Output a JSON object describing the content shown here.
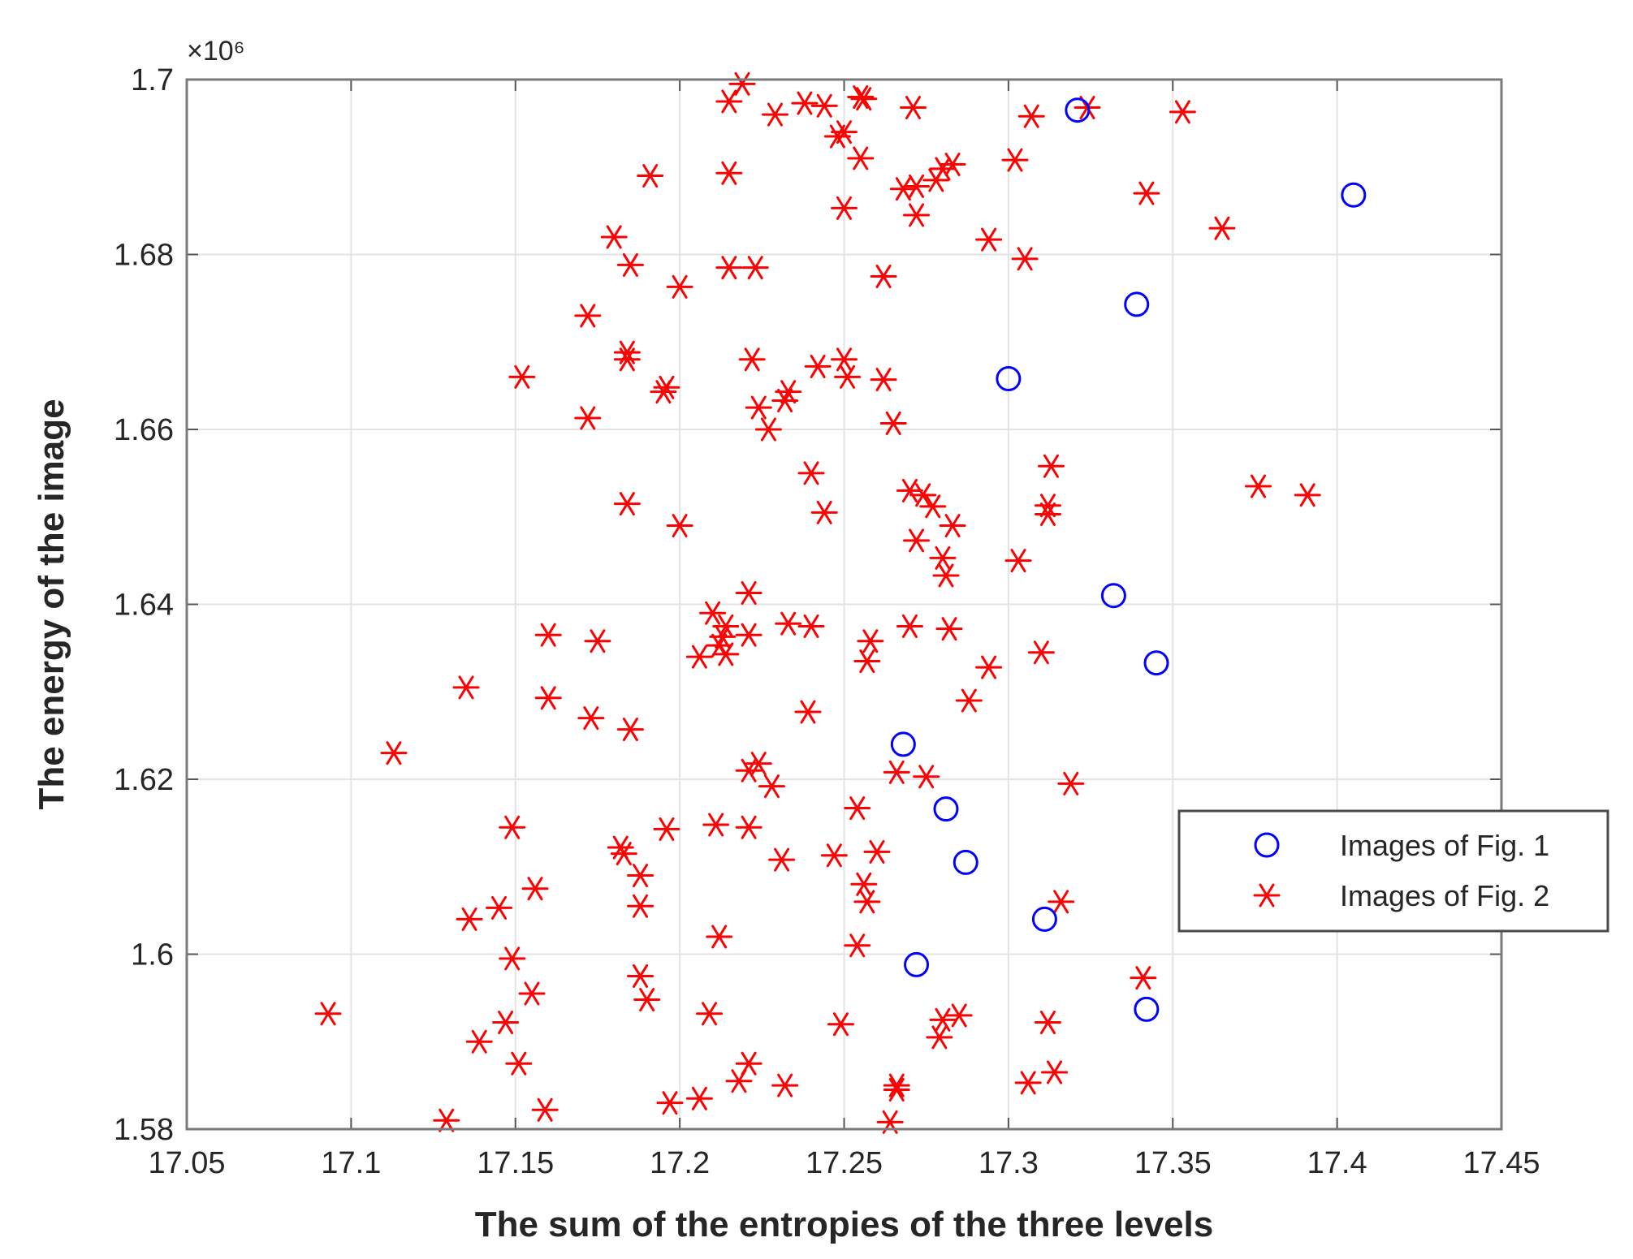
{
  "chart_data": {
    "type": "scatter",
    "title": "",
    "xlabel": "The sum of the entropies of the three levels",
    "ylabel": "The energy of the image",
    "y_exponent_label": "×10⁶",
    "y_scale_factor": 1000000,
    "xlim": [
      17.05,
      17.45
    ],
    "ylim": [
      1.58,
      1.7
    ],
    "x_ticks": [
      "17.05",
      "17.1",
      "17.15",
      "17.2",
      "17.25",
      "17.3",
      "17.35",
      "17.4",
      "17.45"
    ],
    "y_ticks": [
      "1.58",
      "1.6",
      "1.62",
      "1.64",
      "1.66",
      "1.68",
      "1.7"
    ],
    "grid": true,
    "legend_position": "right",
    "series": [
      {
        "name": "Images of Fig. 1",
        "marker": "circle",
        "color": "#0000ff",
        "points": [
          [
            17.321,
            1.6965
          ],
          [
            17.405,
            1.6868
          ],
          [
            17.339,
            1.6743
          ],
          [
            17.3,
            1.6658
          ],
          [
            17.332,
            1.641
          ],
          [
            17.345,
            1.6333
          ],
          [
            17.268,
            1.624
          ],
          [
            17.281,
            1.6166
          ],
          [
            17.287,
            1.6105
          ],
          [
            17.311,
            1.604
          ],
          [
            17.272,
            1.5988
          ],
          [
            17.342,
            1.5937
          ]
        ]
      },
      {
        "name": "Images of Fig. 2",
        "marker": "star",
        "color": "#ff0000",
        "points": [
          [
            17.219,
            1.6995
          ],
          [
            17.215,
            1.6975
          ],
          [
            17.229,
            1.696
          ],
          [
            17.238,
            1.6973
          ],
          [
            17.244,
            1.697
          ],
          [
            17.256,
            1.6978
          ],
          [
            17.255,
            1.698
          ],
          [
            17.271,
            1.6968
          ],
          [
            17.307,
            1.6958
          ],
          [
            17.324,
            1.6968
          ],
          [
            17.353,
            1.6963
          ],
          [
            17.248,
            1.6935
          ],
          [
            17.25,
            1.694
          ],
          [
            17.255,
            1.691
          ],
          [
            17.191,
            1.689
          ],
          [
            17.215,
            1.6893
          ],
          [
            17.268,
            1.6875
          ],
          [
            17.272,
            1.6878
          ],
          [
            17.278,
            1.6885
          ],
          [
            17.28,
            1.6898
          ],
          [
            17.283,
            1.6903
          ],
          [
            17.302,
            1.6908
          ],
          [
            17.342,
            1.687
          ],
          [
            17.25,
            1.6853
          ],
          [
            17.272,
            1.6845
          ],
          [
            17.365,
            1.683
          ],
          [
            17.18,
            1.682
          ],
          [
            17.294,
            1.6817
          ],
          [
            17.185,
            1.6788
          ],
          [
            17.215,
            1.6785
          ],
          [
            17.223,
            1.6785
          ],
          [
            17.305,
            1.6795
          ],
          [
            17.2,
            1.6763
          ],
          [
            17.262,
            1.6775
          ],
          [
            17.172,
            1.673
          ],
          [
            17.184,
            1.6688
          ],
          [
            17.184,
            1.668
          ],
          [
            17.222,
            1.668
          ],
          [
            17.242,
            1.6672
          ],
          [
            17.25,
            1.668
          ],
          [
            17.251,
            1.666
          ],
          [
            17.262,
            1.6657
          ],
          [
            17.152,
            1.666
          ],
          [
            17.196,
            1.6648
          ],
          [
            17.195,
            1.6643
          ],
          [
            17.232,
            1.6633
          ],
          [
            17.233,
            1.6643
          ],
          [
            17.224,
            1.6625
          ],
          [
            17.227,
            1.66
          ],
          [
            17.172,
            1.6613
          ],
          [
            17.265,
            1.6607
          ],
          [
            17.313,
            1.6558
          ],
          [
            17.24,
            1.655
          ],
          [
            17.376,
            1.6535
          ],
          [
            17.391,
            1.6525
          ],
          [
            17.27,
            1.653
          ],
          [
            17.274,
            1.6525
          ],
          [
            17.277,
            1.6512
          ],
          [
            17.312,
            1.6513
          ],
          [
            17.312,
            1.6503
          ],
          [
            17.184,
            1.6515
          ],
          [
            17.244,
            1.6505
          ],
          [
            17.2,
            1.649
          ],
          [
            17.283,
            1.649
          ],
          [
            17.272,
            1.6473
          ],
          [
            17.28,
            1.6453
          ],
          [
            17.281,
            1.6433
          ],
          [
            17.303,
            1.645
          ],
          [
            17.221,
            1.6413
          ],
          [
            17.21,
            1.639
          ],
          [
            17.214,
            1.6375
          ],
          [
            17.213,
            1.6363
          ],
          [
            17.212,
            1.6353
          ],
          [
            17.214,
            1.6343
          ],
          [
            17.206,
            1.634
          ],
          [
            17.221,
            1.6365
          ],
          [
            17.233,
            1.6378
          ],
          [
            17.24,
            1.6375
          ],
          [
            17.258,
            1.6358
          ],
          [
            17.257,
            1.6335
          ],
          [
            17.27,
            1.6375
          ],
          [
            17.282,
            1.6372
          ],
          [
            17.31,
            1.6345
          ],
          [
            17.294,
            1.6328
          ],
          [
            17.16,
            1.6365
          ],
          [
            17.175,
            1.6358
          ],
          [
            17.135,
            1.6305
          ],
          [
            17.16,
            1.6293
          ],
          [
            17.173,
            1.627
          ],
          [
            17.185,
            1.6257
          ],
          [
            17.239,
            1.6277
          ],
          [
            17.288,
            1.629
          ],
          [
            17.113,
            1.623
          ],
          [
            17.224,
            1.6218
          ],
          [
            17.221,
            1.621
          ],
          [
            17.228,
            1.6192
          ],
          [
            17.266,
            1.6208
          ],
          [
            17.275,
            1.6203
          ],
          [
            17.319,
            1.6195
          ],
          [
            17.254,
            1.6167
          ],
          [
            17.149,
            1.6145
          ],
          [
            17.196,
            1.6143
          ],
          [
            17.211,
            1.6148
          ],
          [
            17.221,
            1.6145
          ],
          [
            17.182,
            1.6122
          ],
          [
            17.183,
            1.6115
          ],
          [
            17.231,
            1.6108
          ],
          [
            17.247,
            1.6113
          ],
          [
            17.26,
            1.6117
          ],
          [
            17.188,
            1.609
          ],
          [
            17.256,
            1.608
          ],
          [
            17.156,
            1.6075
          ],
          [
            17.257,
            1.606
          ],
          [
            17.316,
            1.606
          ],
          [
            17.145,
            1.6053
          ],
          [
            17.188,
            1.6055
          ],
          [
            17.136,
            1.604
          ],
          [
            17.212,
            1.602
          ],
          [
            17.254,
            1.601
          ],
          [
            17.149,
            1.5995
          ],
          [
            17.188,
            1.5975
          ],
          [
            17.341,
            1.5973
          ],
          [
            17.155,
            1.5955
          ],
          [
            17.19,
            1.5948
          ],
          [
            17.093,
            1.5932
          ],
          [
            17.209,
            1.5932
          ],
          [
            17.147,
            1.5922
          ],
          [
            17.249,
            1.592
          ],
          [
            17.28,
            1.5925
          ],
          [
            17.285,
            1.593
          ],
          [
            17.312,
            1.5922
          ],
          [
            17.279,
            1.5905
          ],
          [
            17.139,
            1.59
          ],
          [
            17.151,
            1.5875
          ],
          [
            17.221,
            1.5875
          ],
          [
            17.218,
            1.5855
          ],
          [
            17.232,
            1.585
          ],
          [
            17.306,
            1.5853
          ],
          [
            17.314,
            1.5865
          ],
          [
            17.266,
            1.585
          ],
          [
            17.266,
            1.5845
          ],
          [
            17.159,
            1.5822
          ],
          [
            17.197,
            1.583
          ],
          [
            17.206,
            1.5835
          ],
          [
            17.129,
            1.581
          ],
          [
            17.264,
            1.5808
          ]
        ]
      }
    ]
  }
}
